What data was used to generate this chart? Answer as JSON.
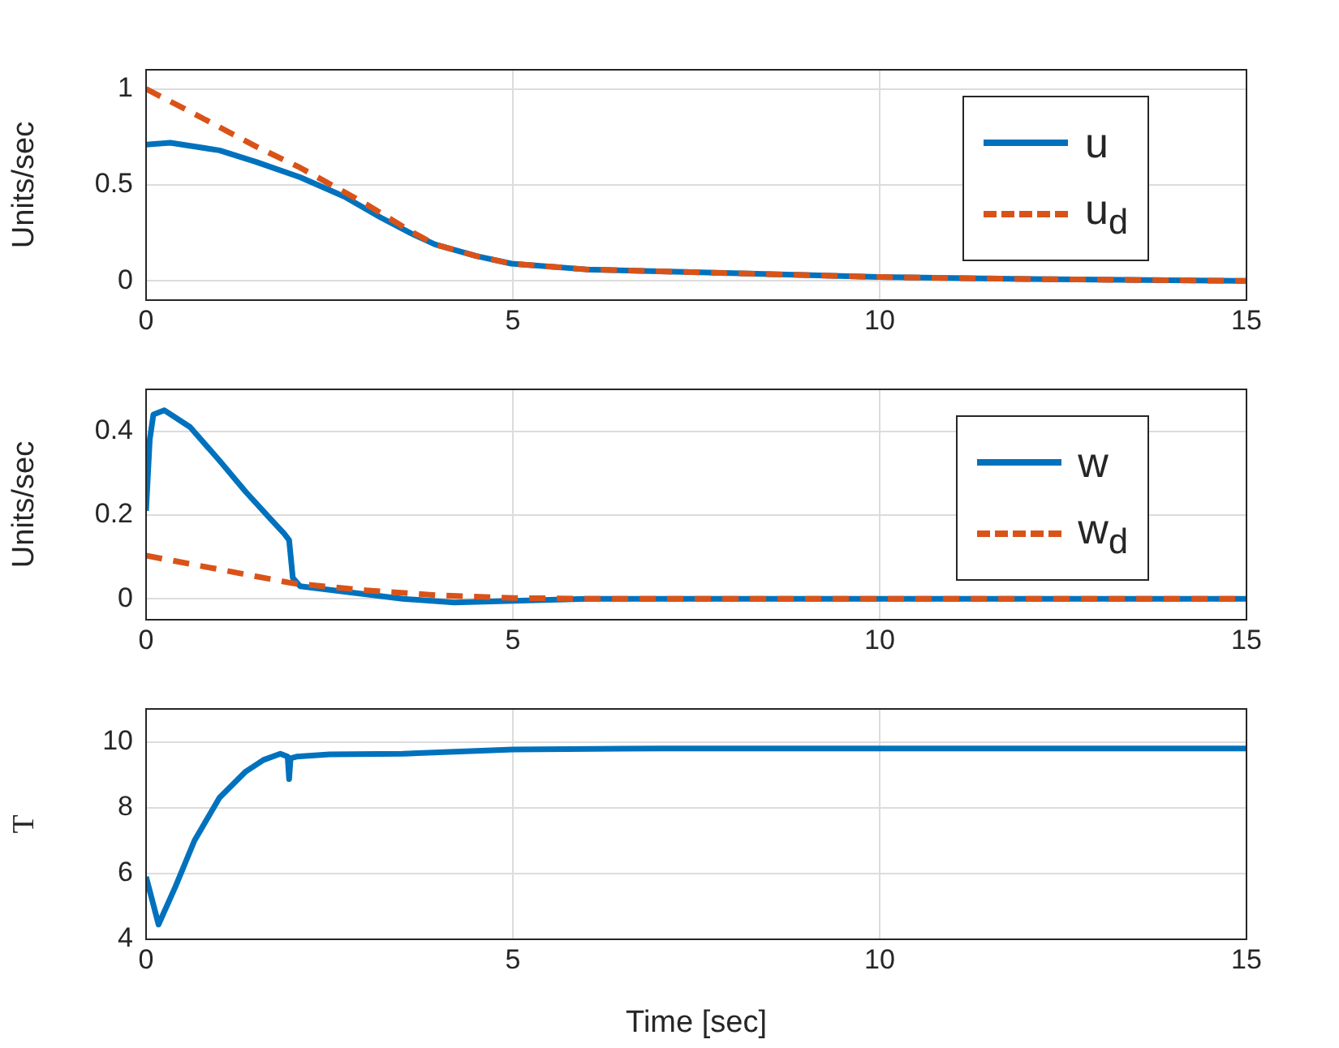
{
  "chart_data": [
    {
      "type": "line",
      "ylabel": "Units/sec",
      "xlim": [
        0,
        15
      ],
      "xticks": [
        0,
        5,
        10,
        15
      ],
      "ylim": [
        -0.1,
        1.1
      ],
      "yticks": [
        0,
        0.5,
        1
      ],
      "grid": true,
      "legend": "top right",
      "series": [
        {
          "name": "u",
          "color": "#0072bd",
          "line_style": "solid",
          "x": [
            0,
            0.33,
            1,
            1.5,
            2.1,
            2.7,
            3.2,
            3.6,
            3.94,
            4.5,
            4.98,
            6,
            7,
            8,
            10,
            12,
            15
          ],
          "values": [
            0.71,
            0.72,
            0.68,
            0.62,
            0.54,
            0.44,
            0.33,
            0.25,
            0.19,
            0.13,
            0.09,
            0.06,
            0.05,
            0.04,
            0.02,
            0.01,
            0
          ]
        },
        {
          "name": "u$_{d}$",
          "color": "#d95319",
          "line_style": "dashed",
          "x": [
            0,
            0.66,
            1.5,
            2.1,
            3,
            3.6,
            3.94,
            4.5,
            4.98,
            6,
            7,
            8,
            10,
            12,
            15
          ],
          "values": [
            1,
            0.87,
            0.7,
            0.59,
            0.4,
            0.26,
            0.19,
            0.13,
            0.09,
            0.06,
            0.05,
            0.04,
            0.02,
            0.01,
            0
          ]
        }
      ]
    },
    {
      "type": "line",
      "ylabel": "Units/sec",
      "xlim": [
        0,
        15
      ],
      "xticks": [
        0,
        5,
        10,
        15
      ],
      "ylim": [
        -0.05,
        0.5
      ],
      "yticks": [
        0,
        0.2,
        0.4
      ],
      "grid": true,
      "legend": "top right",
      "series": [
        {
          "name": "w",
          "color": "#0072bd",
          "line_style": "solid",
          "x": [
            0,
            0.05,
            0.1,
            0.25,
            0.6,
            1,
            1.36,
            1.7,
            1.88,
            1.95,
            2.0,
            2.1,
            2.8,
            3.5,
            4.2,
            5,
            6,
            8,
            15
          ],
          "values": [
            0.21,
            0.38,
            0.44,
            0.45,
            0.41,
            0.33,
            0.255,
            0.19,
            0.156,
            0.14,
            0.05,
            0.03,
            0.015,
            0,
            -0.009,
            -0.005,
            0,
            0,
            0
          ]
        },
        {
          "name": "w$_{d}$",
          "color": "#d95319",
          "line_style": "dashed",
          "x": [
            0,
            1,
            2,
            3,
            4,
            5,
            6,
            15
          ],
          "values": [
            0.103,
            0.07,
            0.037,
            0.02,
            0.008,
            0.002,
            0,
            0
          ]
        }
      ]
    },
    {
      "type": "line",
      "ylabel": "T",
      "xlabel": "Time [sec]",
      "xlim": [
        0,
        15
      ],
      "xticks": [
        0,
        5,
        10,
        15
      ],
      "ylim": [
        4,
        11
      ],
      "yticks": [
        4,
        6,
        8,
        10
      ],
      "grid": true,
      "legend": false,
      "series": [
        {
          "color": "#0072bd",
          "line_style": "solid",
          "x": [
            0,
            0.17,
            0.4,
            0.66,
            1,
            1.36,
            1.6,
            1.83,
            1.93,
            1.95,
            1.97,
            2.05,
            2.5,
            3.5,
            5,
            7,
            10,
            15
          ],
          "values": [
            5.9,
            4.45,
            5.6,
            7.0,
            8.3,
            9.1,
            9.45,
            9.64,
            9.55,
            8.87,
            9.5,
            9.55,
            9.62,
            9.64,
            9.77,
            9.8,
            9.8,
            9.8
          ]
        }
      ]
    }
  ]
}
